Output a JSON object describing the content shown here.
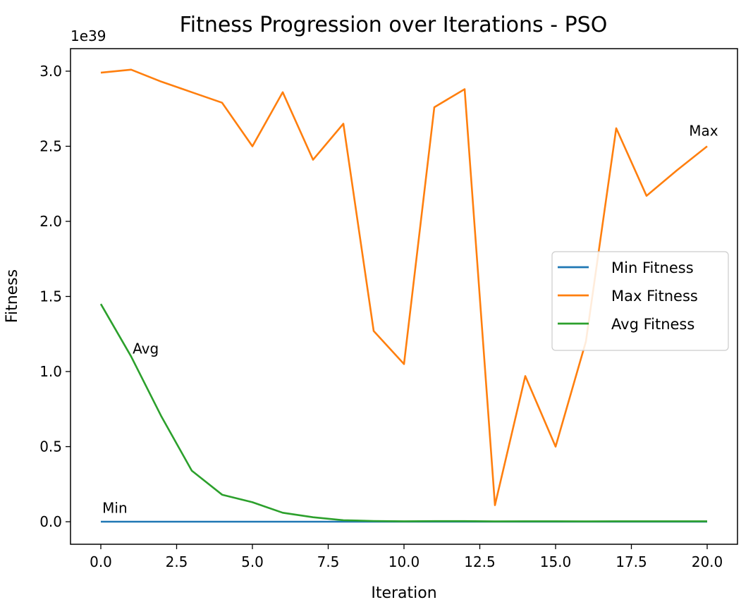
{
  "chart_data": {
    "type": "line",
    "title": "Fitness Progression over Iterations - PSO",
    "xlabel": "Iteration",
    "ylabel": "Fitness",
    "y_offset_label": "1e39",
    "xlim": [
      -1,
      21
    ],
    "ylim": [
      -0.15,
      3.15
    ],
    "xticks": [
      0,
      2.5,
      5,
      7.5,
      10,
      12.5,
      15,
      17.5,
      20
    ],
    "xtick_labels": [
      "0.0",
      "2.5",
      "5.0",
      "7.5",
      "10.0",
      "12.5",
      "15.0",
      "17.5",
      "20.0"
    ],
    "yticks": [
      0,
      0.5,
      1,
      1.5,
      2,
      2.5,
      3
    ],
    "ytick_labels": [
      "0.0",
      "0.5",
      "1.0",
      "1.5",
      "2.0",
      "2.5",
      "3.0"
    ],
    "grid": false,
    "legend_position": "center-right",
    "x": [
      0,
      1,
      2,
      3,
      4,
      5,
      6,
      7,
      8,
      9,
      10,
      11,
      12,
      13,
      14,
      15,
      16,
      17,
      18,
      19,
      20
    ],
    "series": [
      {
        "name": "Min Fitness",
        "color": "#1f77b4",
        "values": [
          0,
          0,
          0,
          0,
          0,
          0,
          0,
          0,
          0,
          0,
          0,
          0,
          0,
          0,
          0,
          0,
          0,
          0,
          0,
          0,
          0
        ]
      },
      {
        "name": "Max Fitness",
        "color": "#ff7f0e",
        "values": [
          2.99,
          3.01,
          2.93,
          2.86,
          2.79,
          2.5,
          2.86,
          2.41,
          2.65,
          1.27,
          1.05,
          2.76,
          2.88,
          0.11,
          0.97,
          0.5,
          1.2,
          2.62,
          2.17,
          2.34,
          2.5
        ]
      },
      {
        "name": "Avg Fitness",
        "color": "#2ca02c",
        "values": [
          1.45,
          1.1,
          0.7,
          0.34,
          0.18,
          0.13,
          0.06,
          0.03,
          0.01,
          0.005,
          0.003,
          0.004,
          0.004,
          0.002,
          0.003,
          0.003,
          0.002,
          0.003,
          0.003,
          0.003,
          0.003
        ]
      }
    ],
    "annotations": [
      {
        "text": "Max",
        "x": 19.4,
        "y": 2.57
      },
      {
        "text": "Avg",
        "x": 1.05,
        "y": 1.12
      },
      {
        "text": "Min",
        "x": 0.05,
        "y": 0.06
      }
    ]
  }
}
